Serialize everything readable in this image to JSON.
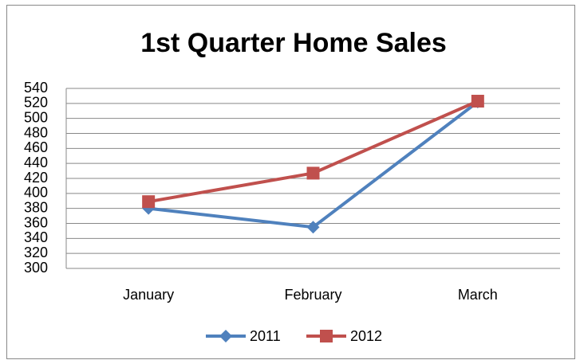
{
  "chart_data": {
    "type": "line",
    "title": "1st Quarter Home Sales",
    "categories": [
      "January",
      "February",
      "March"
    ],
    "series": [
      {
        "name": "2011",
        "color": "#4f81bd",
        "marker": "diamond",
        "values": [
          380,
          355,
          522
        ]
      },
      {
        "name": "2012",
        "color": "#c0504d",
        "marker": "square",
        "values": [
          389,
          427,
          523
        ]
      }
    ],
    "ylim": [
      300,
      540
    ],
    "yticks": [
      300,
      320,
      340,
      360,
      380,
      400,
      420,
      440,
      460,
      480,
      500,
      520,
      540
    ],
    "grid": true,
    "legend": "bottom"
  }
}
